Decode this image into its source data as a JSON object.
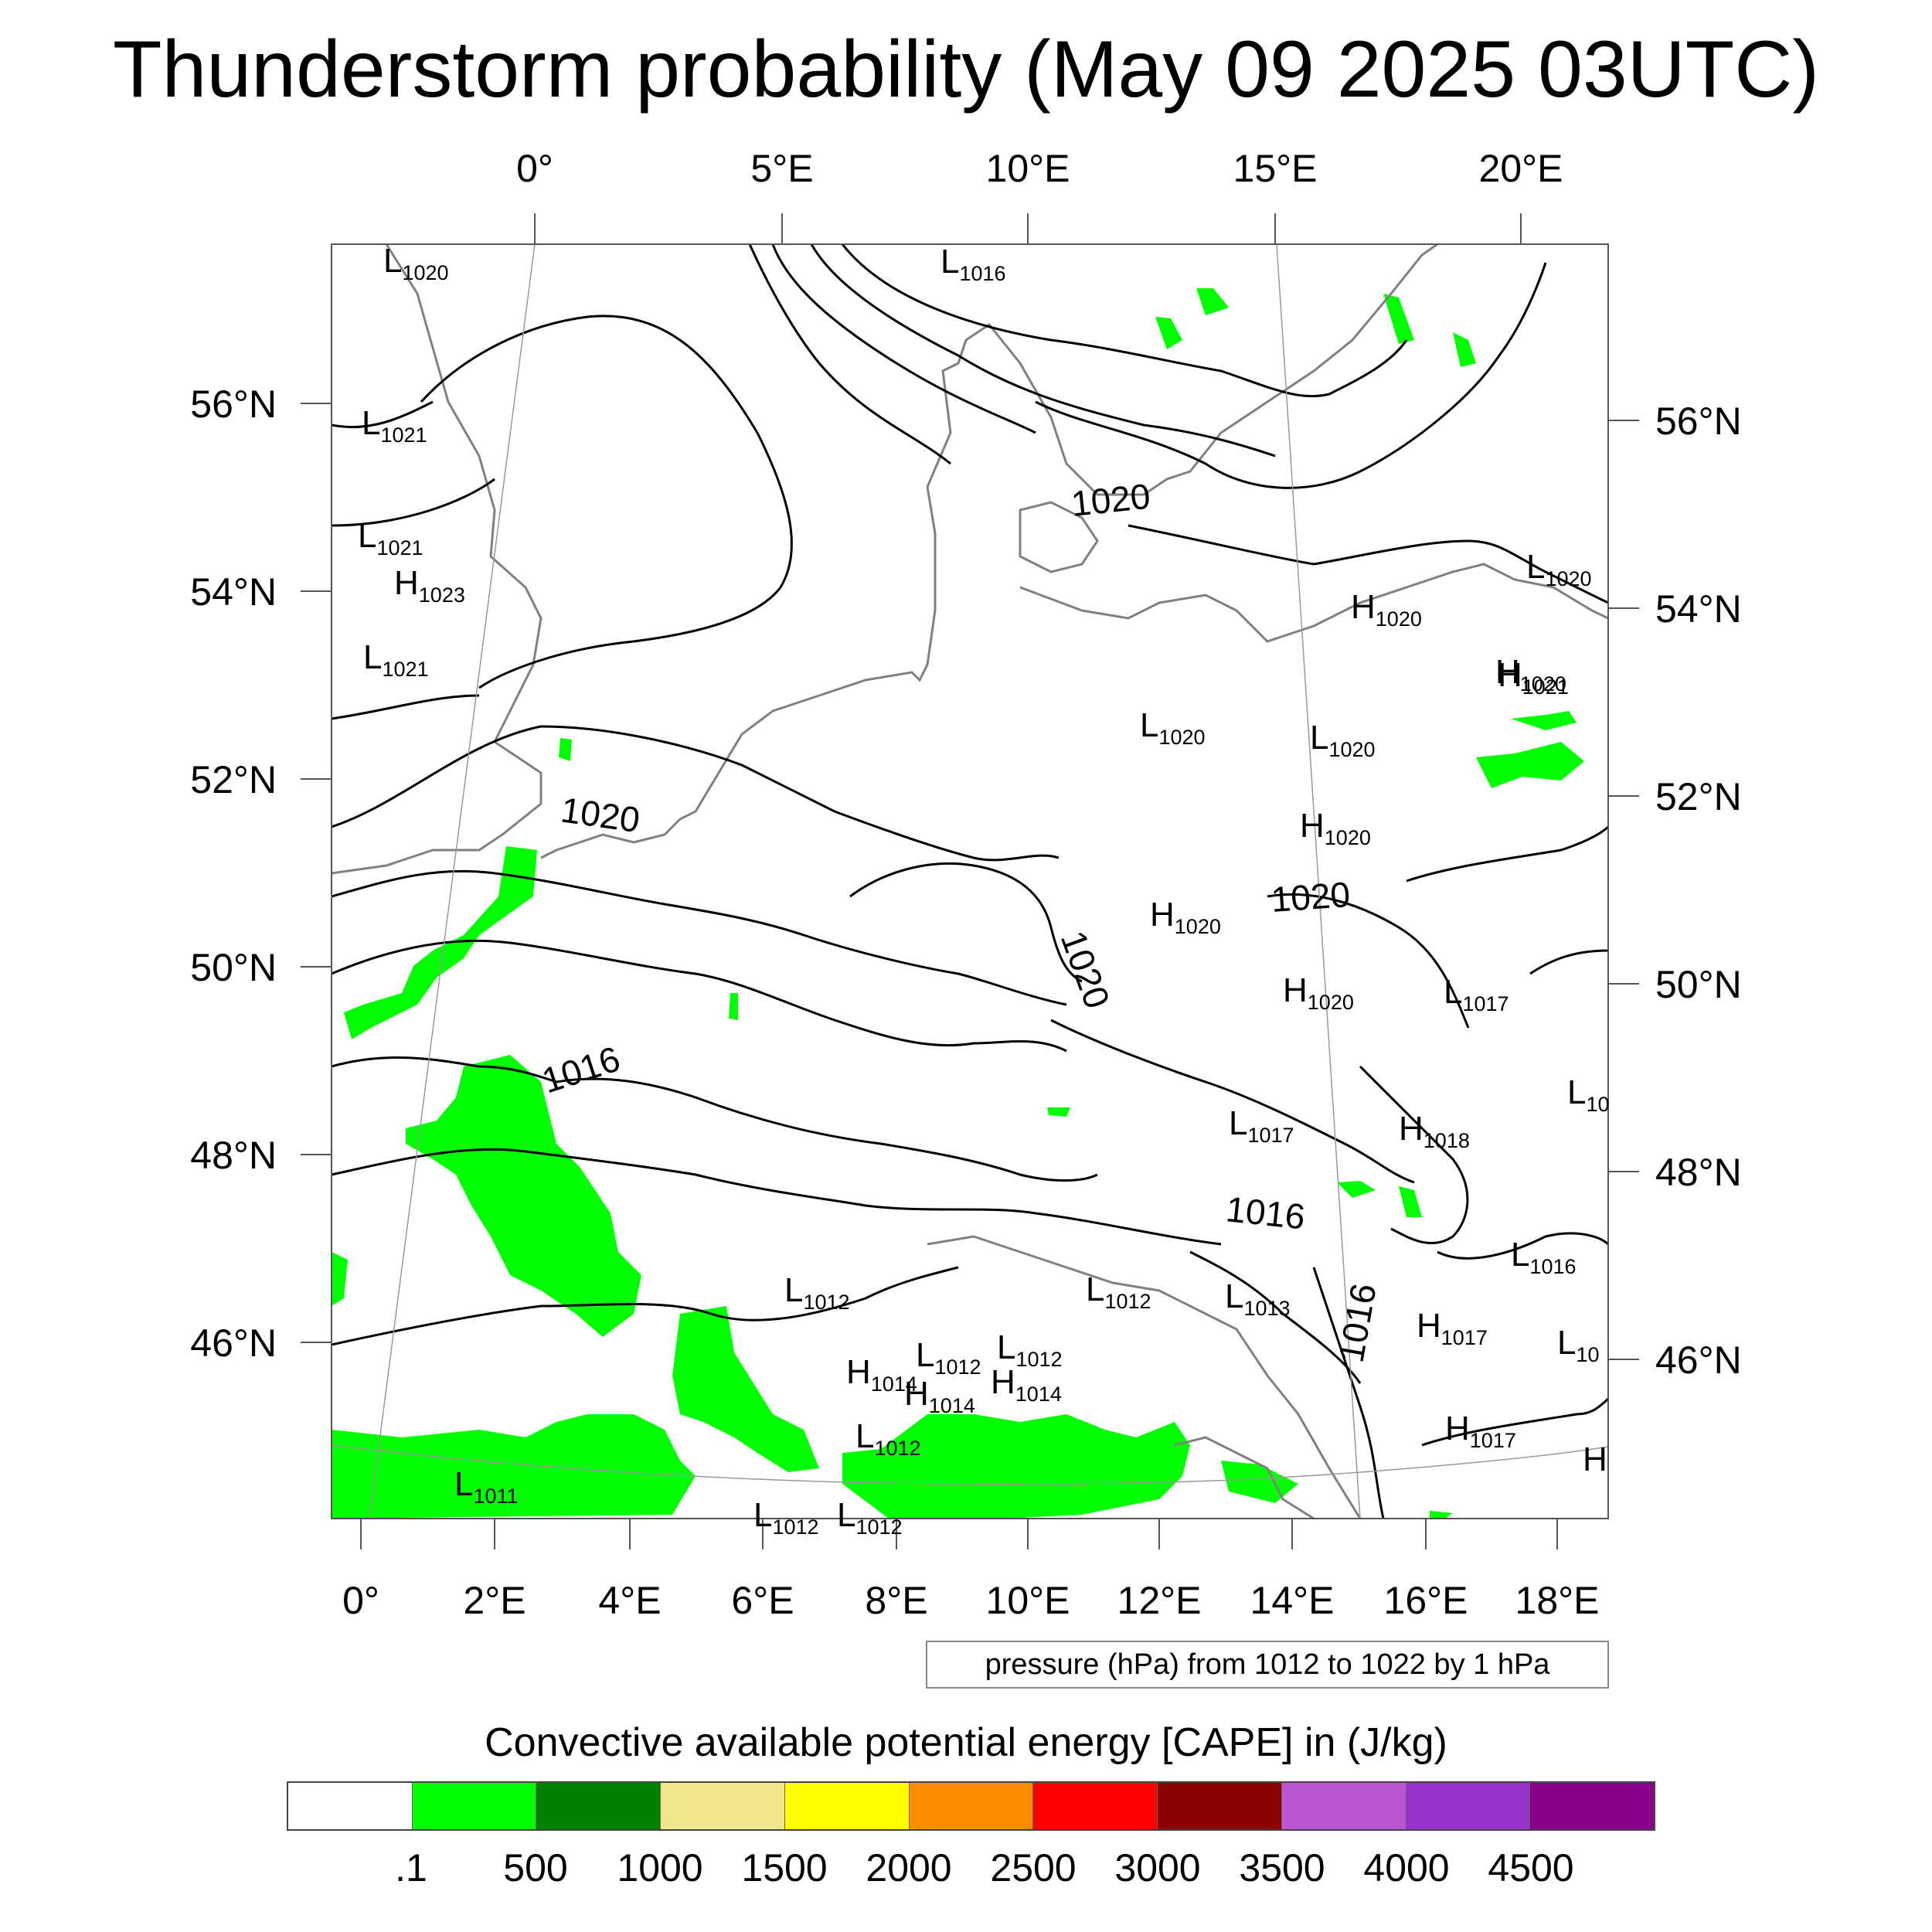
{
  "title": "Thunderstorm probability (May 09 2025 03UTC)",
  "top_lon_labels": [
    "0°",
    "5°E",
    "10°E",
    "15°E",
    "20°E"
  ],
  "left_lat_labels": [
    "56°N",
    "54°N",
    "52°N",
    "50°N",
    "48°N",
    "46°N"
  ],
  "right_lat_labels": [
    "56°N",
    "54°N",
    "52°N",
    "50°N",
    "48°N",
    "46°N"
  ],
  "bottom_lon_labels": [
    "0°",
    "2°E",
    "4°E",
    "6°E",
    "8°E",
    "10°E",
    "12°E",
    "14°E",
    "16°E",
    "18°E"
  ],
  "isobar_labels": [
    "1020",
    "1020",
    "1020",
    "1020",
    "1016",
    "1016",
    "1016"
  ],
  "pressure_systems": [
    {
      "type": "L",
      "value": "1020"
    },
    {
      "type": "L",
      "value": "1016"
    },
    {
      "type": "L",
      "value": "1021"
    },
    {
      "type": "L",
      "value": "1021"
    },
    {
      "type": "H",
      "value": "1023"
    },
    {
      "type": "L",
      "value": "1021"
    },
    {
      "type": "H",
      "value": "1020"
    },
    {
      "type": "L",
      "value": "1020"
    },
    {
      "type": "H",
      "value": "1020"
    },
    {
      "type": "H",
      "value": "1021"
    },
    {
      "type": "L",
      "value": "1020"
    },
    {
      "type": "L",
      "value": "1020"
    },
    {
      "type": "H",
      "value": "1020"
    },
    {
      "type": "H",
      "value": "1020"
    },
    {
      "type": "H",
      "value": "1020"
    },
    {
      "type": "L",
      "value": "1017"
    },
    {
      "type": "L",
      "value": "10"
    },
    {
      "type": "L",
      "value": "1017"
    },
    {
      "type": "H",
      "value": "1018"
    },
    {
      "type": "L",
      "value": "1016"
    },
    {
      "type": "L",
      "value": "1012"
    },
    {
      "type": "L",
      "value": "1012"
    },
    {
      "type": "L",
      "value": "1013"
    },
    {
      "type": "H",
      "value": "1017"
    },
    {
      "type": "L",
      "value": "10"
    },
    {
      "type": "H",
      "value": "1014"
    },
    {
      "type": "L",
      "value": "1012"
    },
    {
      "type": "L",
      "value": "1012"
    },
    {
      "type": "H",
      "value": "1014"
    },
    {
      "type": "H",
      "value": "1014"
    },
    {
      "type": "L",
      "value": "1012"
    },
    {
      "type": "H",
      "value": "1017"
    },
    {
      "type": "H",
      "value": ""
    },
    {
      "type": "L",
      "value": "1011"
    },
    {
      "type": "L",
      "value": "1012"
    },
    {
      "type": "L",
      "value": "1012"
    }
  ],
  "pressure_note": "pressure (hPa) from 1012 to 1022 by 1 hPa",
  "colorbar": {
    "title": "Convective available potential energy [CAPE] in (J/kg)",
    "colors": [
      "#ffffff",
      "#00ff00",
      "#008000",
      "#f0e68c",
      "#ffff00",
      "#ff8c00",
      "#ff0000",
      "#8b0000",
      "#ba55d3",
      "#9932cc",
      "#8b008b"
    ],
    "labels": [
      ".1",
      "500",
      "1000",
      "1500",
      "2000",
      "2500",
      "3000",
      "3500",
      "4000",
      "4500"
    ]
  },
  "cape_fill_color": "#00ff00"
}
